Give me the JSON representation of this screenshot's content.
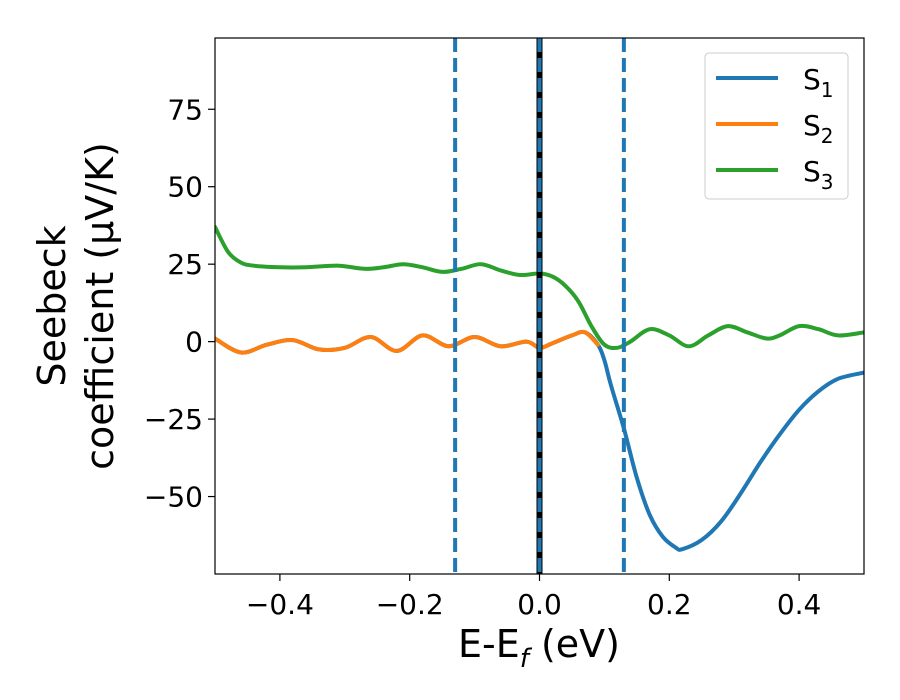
{
  "chart_data": {
    "type": "line",
    "xlabel_main": "E-E",
    "xlabel_sub": "f",
    "xlabel_unit": " (eV)",
    "ylabel_line1": "Seebeck",
    "ylabel_line2": "coefficient  (μV/K)",
    "xlim": [
      -0.5,
      0.5
    ],
    "ylim": [
      -75,
      98
    ],
    "xticks": [
      -0.4,
      -0.2,
      0.0,
      0.2,
      0.4
    ],
    "xtick_labels": [
      "−0.4",
      "−0.2",
      "0.0",
      "0.2",
      "0.4"
    ],
    "yticks": [
      -50,
      -25,
      0,
      25,
      50,
      75
    ],
    "ytick_labels": [
      "−50",
      "−25",
      "0",
      "25",
      "50",
      "75"
    ],
    "grid": false,
    "legend_position": "top-right",
    "vlines": [
      {
        "x": 0.0,
        "color": "#000000",
        "style": "solid"
      },
      {
        "x": 0.0,
        "color": "#1f77b4",
        "style": "dashed"
      },
      {
        "x": -0.13,
        "color": "#1f77b4",
        "style": "dashed"
      },
      {
        "x": 0.13,
        "color": "#1f77b4",
        "style": "dashed"
      }
    ],
    "series": [
      {
        "name": "S",
        "sub": "1",
        "color": "#1f77b4",
        "x": [
          -0.5,
          -0.46,
          -0.42,
          -0.38,
          -0.34,
          -0.3,
          -0.26,
          -0.22,
          -0.18,
          -0.14,
          -0.1,
          -0.06,
          -0.02,
          0.0,
          0.02,
          0.05,
          0.07,
          0.09,
          0.1,
          0.11,
          0.13,
          0.15,
          0.17,
          0.19,
          0.21,
          0.22,
          0.25,
          0.28,
          0.31,
          0.34,
          0.37,
          0.4,
          0.43,
          0.46,
          0.5
        ],
        "y": [
          1,
          -3.5,
          -1,
          0.5,
          -2.5,
          -2,
          1.5,
          -3,
          2,
          -1.5,
          1.5,
          -1.5,
          0,
          -2,
          -0.5,
          2,
          3,
          -1,
          -6,
          -14,
          -28,
          -44,
          -56,
          -63,
          -66.5,
          -67,
          -64,
          -58,
          -49,
          -39,
          -30,
          -22,
          -16,
          -12,
          -10
        ]
      },
      {
        "name": "S",
        "sub": "2",
        "color": "#ff7f0e",
        "x": [
          -0.5,
          -0.46,
          -0.42,
          -0.38,
          -0.34,
          -0.3,
          -0.26,
          -0.22,
          -0.18,
          -0.14,
          -0.1,
          -0.06,
          -0.02,
          0.0,
          0.02,
          0.05,
          0.07,
          0.09
        ],
        "y": [
          1,
          -3.5,
          -1,
          0.5,
          -2.5,
          -2,
          1.5,
          -3,
          2,
          -1.5,
          1.5,
          -1.5,
          0,
          -2,
          -0.5,
          2,
          3,
          -1
        ]
      },
      {
        "name": "S",
        "sub": "3",
        "color": "#2ca02c",
        "x": [
          -0.5,
          -0.48,
          -0.46,
          -0.44,
          -0.4,
          -0.36,
          -0.31,
          -0.27,
          -0.24,
          -0.21,
          -0.18,
          -0.15,
          -0.12,
          -0.09,
          -0.06,
          -0.03,
          0.0,
          0.02,
          0.04,
          0.06,
          0.08,
          0.1,
          0.12,
          0.14,
          0.17,
          0.2,
          0.23,
          0.26,
          0.29,
          0.32,
          0.35,
          0.37,
          0.4,
          0.43,
          0.46,
          0.5
        ],
        "y": [
          37,
          29,
          25.5,
          24.5,
          24,
          24,
          24.5,
          23.5,
          24,
          25,
          24,
          22.5,
          23.5,
          25,
          23,
          21.5,
          22,
          21,
          18,
          13,
          5,
          -1,
          -2,
          0,
          4,
          2,
          -1.5,
          2,
          5,
          3,
          1,
          2,
          5,
          4,
          2,
          3
        ]
      }
    ]
  }
}
